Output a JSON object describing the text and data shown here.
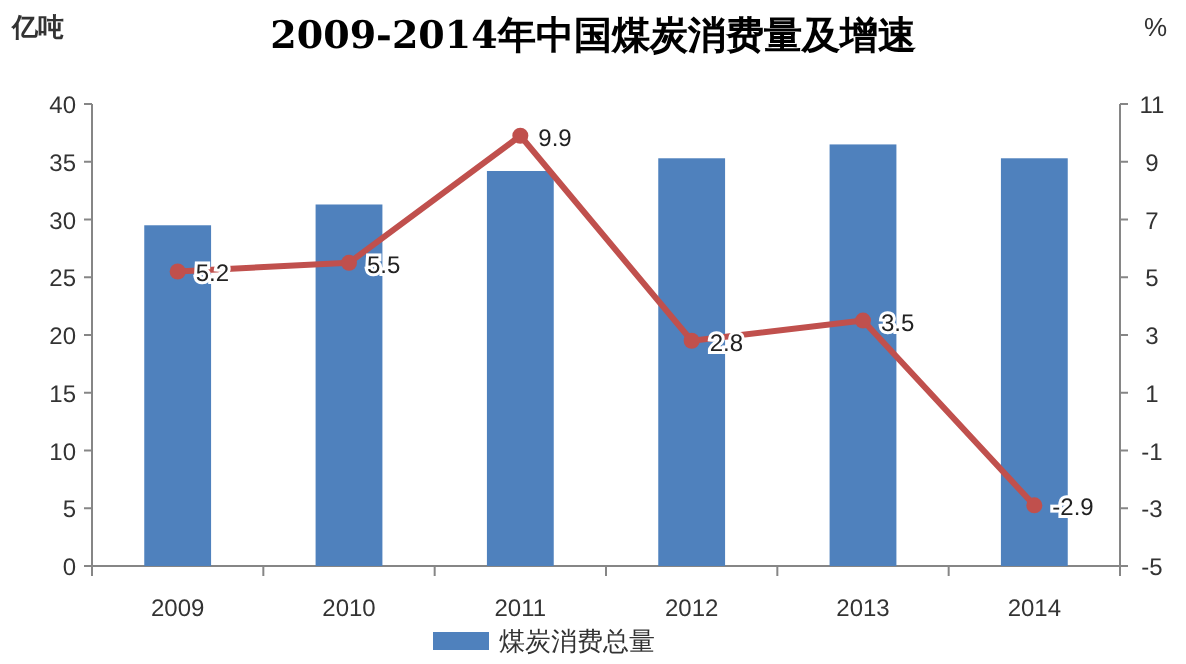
{
  "chart_data": {
    "type": "bar",
    "title": "2009-2014年中国煤炭消费量及增速",
    "ylabel": "亿吨",
    "y2label": "%",
    "categories": [
      "2009",
      "2010",
      "2011",
      "2012",
      "2013",
      "2014"
    ],
    "series": [
      {
        "name": "煤炭消费总量",
        "color": "#4f81bd",
        "values": [
          29.5,
          31.3,
          34.2,
          35.3,
          36.5,
          35.3
        ]
      },
      {
        "type": "line",
        "axis": "y2",
        "color": "#c0504d",
        "marker": "circle",
        "values": [
          5.2,
          5.5,
          9.9,
          2.8,
          3.5,
          -2.9
        ],
        "data_labels": true
      }
    ],
    "ylim": [
      0,
      40
    ],
    "yticks": [
      0,
      5,
      10,
      15,
      20,
      25,
      30,
      35,
      40
    ],
    "y2lim": [
      -5,
      11
    ],
    "y2ticks": [
      -5,
      -3,
      -1,
      1,
      3,
      5,
      7,
      9,
      11
    ],
    "legend": "bottom",
    "grid": false
  }
}
